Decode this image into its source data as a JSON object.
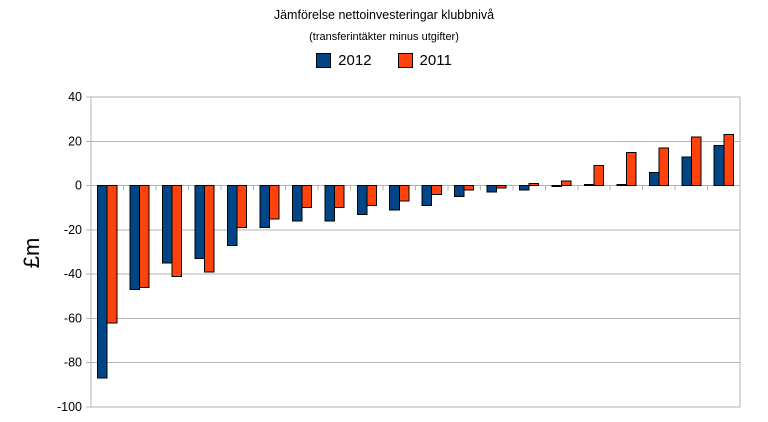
{
  "chart": {
    "title": "Jämförelse nettoinvesteringar klubbnivå",
    "subtitle": "(transferintäkter minus utgifter)",
    "ylabel": "£m"
  },
  "chart_data": {
    "type": "bar",
    "title": "Jämförelse nettoinvesteringar klubbnivå",
    "subtitle": "(transferintäkter minus utgifter)",
    "ylabel": "£m",
    "xlabel": "",
    "ylim": [
      -100,
      40
    ],
    "ytick_interval": 20,
    "ytick_labels": [
      "40",
      "20",
      "0",
      "-20",
      "-40",
      "-60",
      "-80",
      "-100"
    ],
    "grid": true,
    "legend_position": "top",
    "n_categories": 20,
    "category_labels_visible": false,
    "series": [
      {
        "name": "2012",
        "color": "#004586",
        "values": [
          -87,
          -47,
          -35,
          -33,
          -27,
          -19,
          -16,
          -16,
          -13,
          -11,
          -9,
          -5,
          -3,
          -2,
          -0.5,
          0.5,
          0.5,
          6,
          13,
          18
        ]
      },
      {
        "name": "2011",
        "color": "#ff420e",
        "values": [
          -62,
          -46,
          -41,
          -39,
          -19,
          -15,
          -10,
          -10,
          -9,
          -7,
          -4,
          -2,
          -1,
          1,
          2,
          9,
          15,
          17,
          22,
          23
        ]
      }
    ],
    "colors": {
      "bar_border": "#000000",
      "gridline": "#b3b3b3",
      "wall_border": "#b3b3b3",
      "text": "#000000",
      "background": "#ffffff"
    }
  }
}
